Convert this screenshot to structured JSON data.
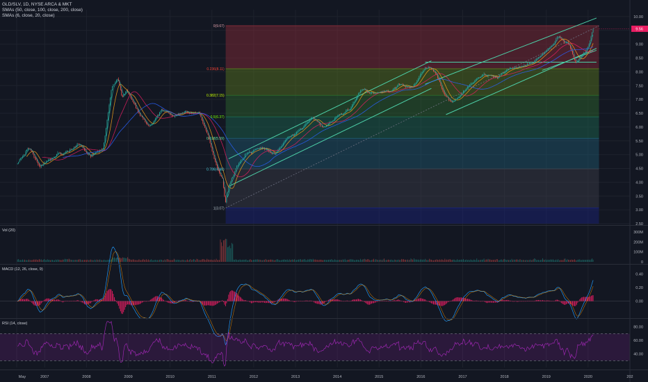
{
  "header": {
    "symbol_line": "GLD/SLV, 1D, NYSE ARCA & MKT",
    "sma_long_line": "SMAs (50, close, 100, close, 200, close)",
    "sma_short_line": "SMAs (6, close, 20, close)"
  },
  "colors": {
    "background": "#131722",
    "grid": "#1e222d",
    "candle_up": "#26a69a",
    "candle_down": "#ef5350",
    "channel": "#4dd0a8",
    "macd_hist": "#e91e63",
    "macd_line": "#2196f3",
    "rsi_line": "#9c27b0",
    "price_tag": "#e91e63"
  },
  "chart_data": [
    {
      "type": "line",
      "panel": "price",
      "x_ticks": [
        "May",
        "2007",
        "2008",
        "2009",
        "2010",
        "2011",
        "2012",
        "2013",
        "2014",
        "2015",
        "2016",
        "2017",
        "2018",
        "2019",
        "2020",
        "202"
      ],
      "y_ticks": [
        "10.00",
        "9.50",
        "9.00",
        "8.50",
        "8.00",
        "7.50",
        "7.00",
        "6.50",
        "6.00",
        "5.50",
        "5.00",
        "4.50",
        "4.00",
        "3.50",
        "3.00",
        "2.50"
      ],
      "ylim": [
        2.5,
        10.25
      ],
      "current_price": "9.56",
      "series": [
        {
          "x": [
            2006.35,
            2006.6,
            2006.9,
            2007.2,
            2007.5,
            2007.8,
            2008.1,
            2008.4,
            2008.6,
            2008.75,
            2008.85,
            2008.95,
            2009.2,
            2009.5,
            2009.8,
            2010.1,
            2010.4,
            2010.7,
            2010.95,
            2011.1,
            2011.25,
            2011.32,
            2011.4,
            2011.6,
            2011.9,
            2012.2,
            2012.5,
            2012.8,
            2013.1,
            2013.4,
            2013.7,
            2014.0,
            2014.3,
            2014.6,
            2014.9,
            2015.2,
            2015.5,
            2015.8,
            2016.0,
            2016.2,
            2016.35,
            2016.5,
            2016.7,
            2016.9,
            2017.2,
            2017.5,
            2017.8,
            2018.1,
            2018.4,
            2018.7,
            2019.0,
            2019.3,
            2019.55,
            2019.7,
            2019.85,
            2020.0,
            2020.12
          ],
          "values": [
            4.7,
            5.2,
            4.6,
            4.9,
            5.1,
            5.4,
            5.0,
            5.2,
            7.4,
            7.8,
            7.0,
            7.3,
            6.7,
            6.0,
            6.6,
            6.4,
            6.6,
            6.5,
            5.5,
            4.6,
            4.1,
            3.2,
            3.9,
            4.7,
            5.1,
            5.3,
            5.0,
            5.6,
            5.9,
            6.3,
            6.0,
            6.4,
            6.7,
            7.4,
            7.2,
            7.3,
            7.5,
            7.4,
            7.9,
            8.2,
            8.0,
            7.3,
            6.9,
            7.1,
            7.5,
            7.9,
            7.8,
            8.1,
            8.2,
            8.4,
            8.8,
            9.3,
            9.0,
            8.3,
            8.6,
            8.9,
            9.56
          ]
        }
      ],
      "fibonacci": [
        {
          "label": "0(9.67)",
          "value": 9.67
        },
        {
          "label": "0.236(8.11)",
          "value": 8.11
        },
        {
          "label": "0.382(7.15)",
          "value": 7.15
        },
        {
          "label": "0.5(6.37)",
          "value": 6.37
        },
        {
          "label": "0.618(5.59)",
          "value": 5.59
        },
        {
          "label": "0.786(4.48)",
          "value": 4.48
        },
        {
          "label": "1(3.07)",
          "value": 3.07
        }
      ]
    },
    {
      "type": "bar",
      "panel": "volume",
      "title": "Vol (20)",
      "y_ticks": [
        "300M",
        "200M",
        "100M",
        "0"
      ],
      "ylim": [
        0,
        350
      ]
    },
    {
      "type": "bar",
      "panel": "macd",
      "title": "MACD (12, 26, close, 9)",
      "y_ticks": [
        "0.40",
        "0.20",
        "0.00"
      ],
      "ylim": [
        -0.22,
        0.52
      ]
    },
    {
      "type": "line",
      "panel": "rsi",
      "title": "RSI (14, close)",
      "y_ticks": [
        "80.00",
        "60.00",
        "40.00"
      ],
      "ylim": [
        20,
        90
      ],
      "band": [
        30,
        70
      ]
    }
  ]
}
